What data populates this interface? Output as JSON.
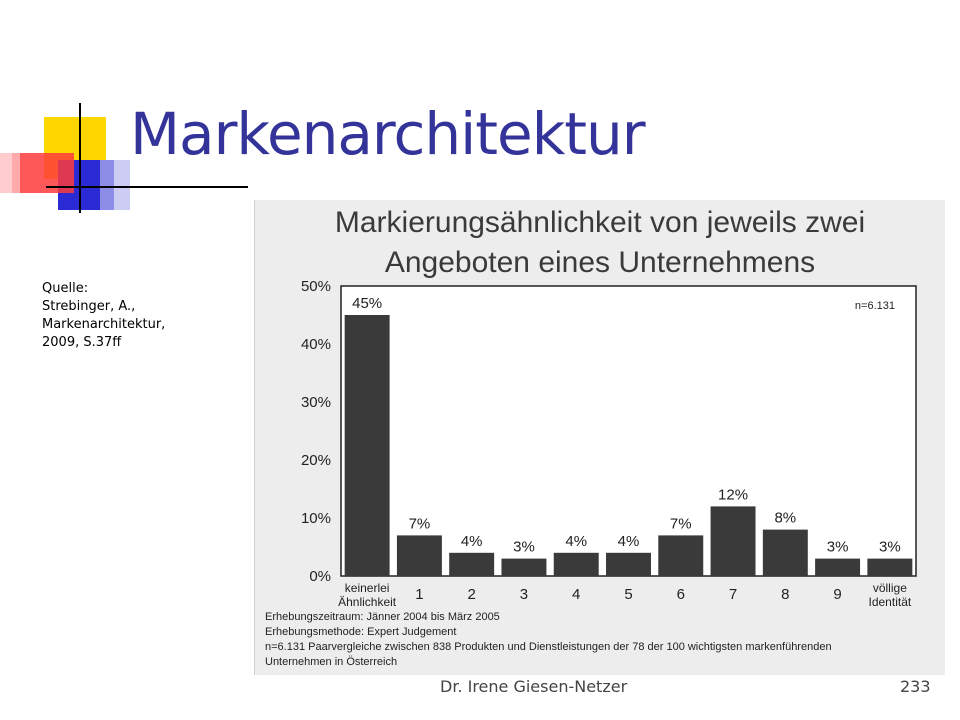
{
  "slide": {
    "title": "Markenarchitektur",
    "source_lines": [
      "Quelle:",
      "Strebinger, A.,",
      "Markenarchitektur,",
      "2009, S.37ff"
    ],
    "footer_author": "Dr. Irene Giesen-Netzer",
    "page_number": "233"
  },
  "colors": {
    "title": "#333399",
    "bar": "#3a3a3a",
    "chart_background": "#ededed",
    "logo_yellow": "#ffd700",
    "logo_red": "#ff3b3b",
    "logo_blue": "#2b2bd6"
  },
  "chart_data": {
    "type": "bar",
    "title_lines": [
      "Markierungsähnlichkeit von jeweils zwei",
      "Angeboten eines Unternehmens"
    ],
    "categories": [
      [
        "keinerlei",
        "Ähnlichkeit"
      ],
      [
        "1"
      ],
      [
        "2"
      ],
      [
        "3"
      ],
      [
        "4"
      ],
      [
        "5"
      ],
      [
        "6"
      ],
      [
        "7"
      ],
      [
        "8"
      ],
      [
        "9"
      ],
      [
        "völlige",
        "Identität"
      ]
    ],
    "values": [
      45,
      7,
      4,
      3,
      4,
      4,
      7,
      12,
      8,
      3,
      3
    ],
    "value_labels": [
      "45%",
      "7%",
      "4%",
      "3%",
      "4%",
      "4%",
      "7%",
      "12%",
      "8%",
      "3%",
      "3%"
    ],
    "ylim": [
      0,
      50
    ],
    "y_ticks": [
      "0%",
      "10%",
      "20%",
      "30%",
      "40%",
      "50%"
    ],
    "annotation": "n=6.131",
    "notes": [
      "Erhebungszeitraum: Jänner 2004 bis März 2005",
      "Erhebungsmethode: Expert Judgement",
      "n=6.131 Paarvergleiche zwischen 838 Produkten und Dienstleistungen der 78 der 100 wichtigsten markenführenden",
      "Unternehmen in Österreich"
    ]
  }
}
